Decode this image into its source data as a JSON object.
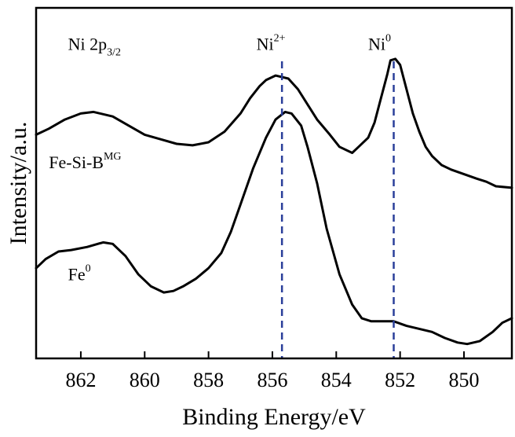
{
  "chart_data": {
    "type": "line",
    "xlabel": "Binding Energy/eV",
    "ylabel": "Intensity/a.u.",
    "xlim": [
      863.4,
      848.5
    ],
    "ylim": [
      0,
      10
    ],
    "x_reversed": true,
    "xticks": [
      862,
      860,
      858,
      856,
      854,
      852,
      850
    ],
    "yticks_shown": false,
    "grid": false,
    "annotations": [
      {
        "id": "region",
        "base": "Ni 2p",
        "sub": "3/2",
        "x": 862.4,
        "y": 9.5
      },
      {
        "id": "ni2",
        "base": "Ni",
        "sup": "2+",
        "x": 856.5,
        "y": 9.5
      },
      {
        "id": "ni0",
        "base": "Ni",
        "sup": "0",
        "x": 853.0,
        "y": 9.5
      },
      {
        "id": "fesib",
        "base": "Fe-Si-B",
        "sup": "MG",
        "x": 863.0,
        "y": 5.6
      },
      {
        "id": "fe0",
        "base": "Fe",
        "sup": "0",
        "x": 862.4,
        "y": 1.9
      }
    ],
    "reference_lines": [
      {
        "label": "Ni2+",
        "x": 855.7
      },
      {
        "label": "Ni0",
        "x": 852.2
      }
    ],
    "series": [
      {
        "label_ref": "fesib",
        "x": [
          863.4,
          863.0,
          862.5,
          862.0,
          861.6,
          861.0,
          860.5,
          860.0,
          859.5,
          859.0,
          858.5,
          858.0,
          857.5,
          857.0,
          856.7,
          856.4,
          856.2,
          855.9,
          855.5,
          855.2,
          854.9,
          854.6,
          854.2,
          853.9,
          853.5,
          853.3,
          853.0,
          852.8,
          852.6,
          852.4,
          852.3,
          852.15,
          852.0,
          851.8,
          851.6,
          851.4,
          851.2,
          851.0,
          850.7,
          850.4,
          850.0,
          849.6,
          849.3,
          849.0,
          848.5
        ],
        "y": [
          6.7,
          6.9,
          7.2,
          7.4,
          7.45,
          7.3,
          7.0,
          6.7,
          6.55,
          6.4,
          6.35,
          6.45,
          6.8,
          7.4,
          7.9,
          8.3,
          8.5,
          8.65,
          8.55,
          8.2,
          7.7,
          7.2,
          6.7,
          6.3,
          6.1,
          6.3,
          6.6,
          7.1,
          7.9,
          8.7,
          9.15,
          9.2,
          9.0,
          8.2,
          7.4,
          6.8,
          6.3,
          6.0,
          5.7,
          5.55,
          5.4,
          5.25,
          5.15,
          5.0,
          4.95
        ]
      },
      {
        "label_ref": "fe0",
        "x": [
          863.4,
          863.1,
          862.7,
          862.3,
          861.8,
          861.3,
          861.0,
          860.6,
          860.2,
          859.8,
          859.4,
          859.1,
          858.8,
          858.4,
          858.0,
          857.6,
          857.3,
          857.0,
          856.6,
          856.2,
          855.9,
          855.6,
          855.4,
          855.1,
          854.9,
          854.6,
          854.3,
          853.9,
          853.5,
          853.2,
          852.9,
          852.6,
          852.2,
          851.8,
          851.4,
          851.0,
          850.6,
          850.2,
          849.9,
          849.5,
          849.1,
          848.8,
          848.5
        ],
        "y": [
          2.3,
          2.6,
          2.85,
          2.9,
          3.0,
          3.15,
          3.1,
          2.7,
          2.1,
          1.7,
          1.5,
          1.55,
          1.7,
          1.95,
          2.3,
          2.8,
          3.5,
          4.4,
          5.6,
          6.6,
          7.2,
          7.45,
          7.4,
          7.0,
          6.3,
          5.1,
          3.6,
          2.1,
          1.1,
          0.65,
          0.55,
          0.55,
          0.55,
          0.4,
          0.3,
          0.2,
          0.0,
          -0.15,
          -0.2,
          -0.1,
          0.2,
          0.5,
          0.65
        ]
      }
    ]
  }
}
